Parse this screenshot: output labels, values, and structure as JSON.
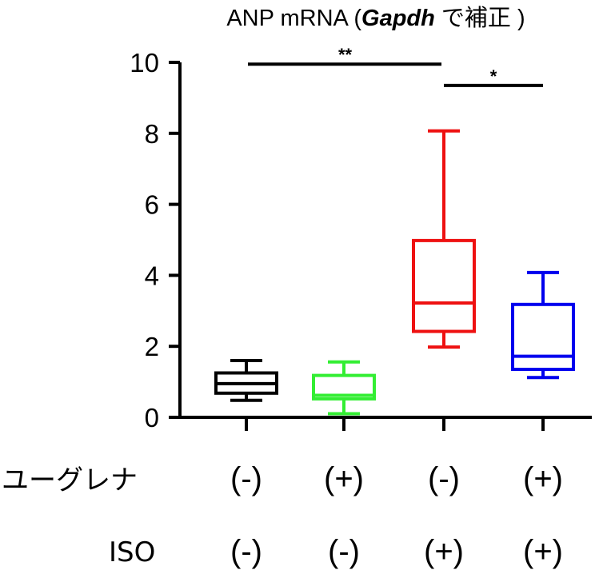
{
  "chart_data": {
    "type": "boxplot",
    "title": {
      "prefix": "ANP mRNA (",
      "gene": "Gapdh",
      "suffix": " で補正 )"
    },
    "ylim": [
      0,
      10
    ],
    "yticks": [
      0,
      2,
      4,
      6,
      8,
      10
    ],
    "yticks_labels": [
      "0",
      "2",
      "4",
      "6",
      "8",
      "10"
    ],
    "grid": false,
    "groups": [
      {
        "euglena": "(-)",
        "iso": "(-)",
        "color": "#000000",
        "min": 0.48,
        "q1": 0.68,
        "median": 0.95,
        "q3": 1.25,
        "max": 1.6
      },
      {
        "euglena": "(+)",
        "iso": "(-)",
        "color": "#33ee33",
        "min": 0.1,
        "q1": 0.52,
        "median": 0.62,
        "q3": 1.18,
        "max": 1.56
      },
      {
        "euglena": "(-)",
        "iso": "(+)",
        "color": "#ee1111",
        "min": 1.98,
        "q1": 2.42,
        "median": 3.22,
        "q3": 4.98,
        "max": 8.07
      },
      {
        "euglena": "(+)",
        "iso": "(+)",
        "color": "#0000ee",
        "min": 1.12,
        "q1": 1.35,
        "median": 1.72,
        "q3": 3.18,
        "max": 4.08
      }
    ],
    "row_labels": {
      "euglena": "ユーグレナ",
      "iso": "ISO"
    },
    "significance": [
      {
        "from": 0,
        "to": 2,
        "y": 9.95,
        "label": "**"
      },
      {
        "from": 2,
        "to": 3,
        "y": 9.35,
        "label": "*"
      }
    ]
  }
}
